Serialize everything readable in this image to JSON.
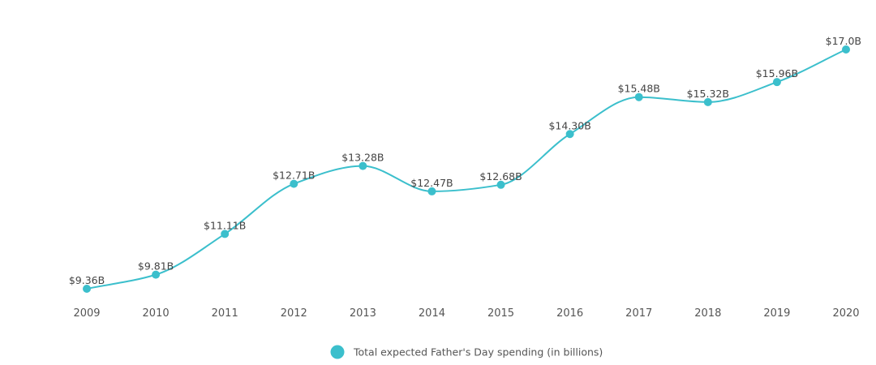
{
  "chart_data": {
    "type": "line",
    "title": "",
    "xlabel": "",
    "ylabel": "",
    "categories": [
      "2009",
      "2010",
      "2011",
      "2012",
      "2013",
      "2014",
      "2015",
      "2016",
      "2017",
      "2018",
      "2019",
      "2020"
    ],
    "series": [
      {
        "name": "Total expected Father's Day spending (in billions)",
        "values": [
          9.36,
          9.81,
          11.11,
          12.71,
          13.28,
          12.47,
          12.68,
          14.3,
          15.48,
          15.32,
          15.96,
          17.0
        ],
        "labels": [
          "$9.36B",
          "$9.81B",
          "$11.11B",
          "$12.71B",
          "$13.28B",
          "$12.47B",
          "$12.68B",
          "$14.30B",
          "$15.48B",
          "$15.32B",
          "$15.96B",
          "$17.0B"
        ],
        "color": "#3bbfcc"
      }
    ],
    "ylim": [
      9.36,
      17.0
    ],
    "grid": false,
    "legend_position": "bottom-center"
  }
}
